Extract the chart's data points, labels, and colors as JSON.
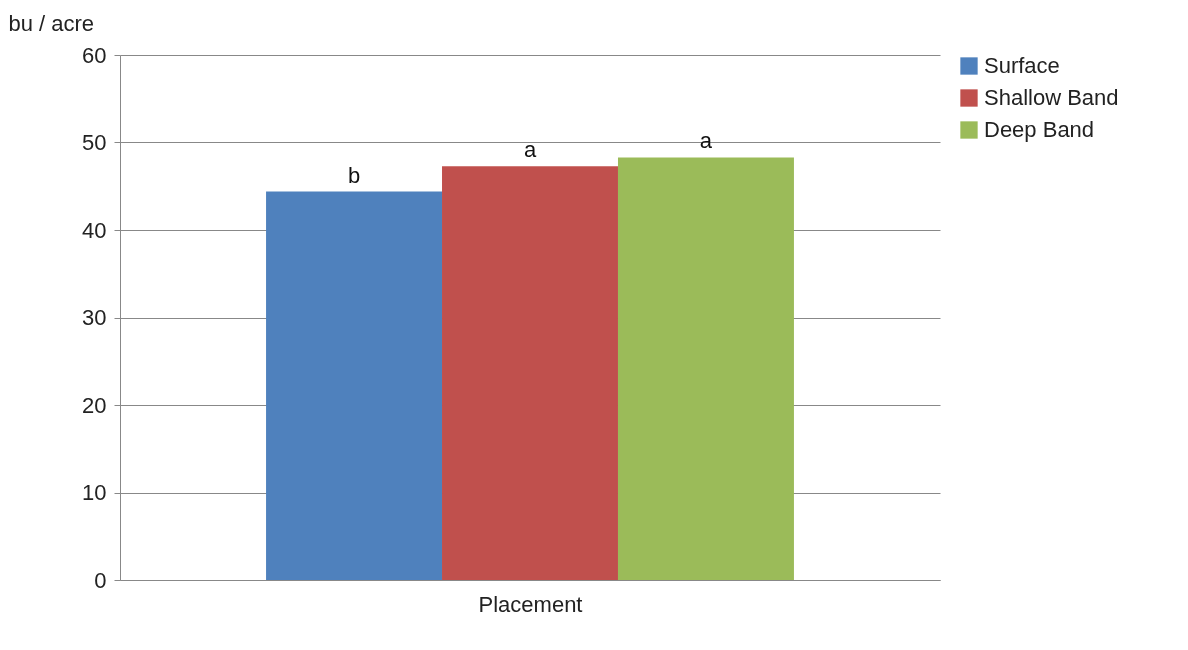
{
  "chart_data": {
    "type": "bar",
    "ylabel": "bu / acre",
    "xlabel": "Placement",
    "categories": [
      null
    ],
    "series": [
      {
        "name": "Surface",
        "color": "#4f81bd",
        "values": [
          44.4
        ]
      },
      {
        "name": "Shallow Band",
        "color": "#c0504d",
        "values": [
          47.3
        ]
      },
      {
        "name": "Deep Band",
        "color": "#9bbb59",
        "values": [
          48.3
        ]
      }
    ],
    "ylim": [
      0,
      60
    ],
    "yticks": [
      0,
      10,
      20,
      30,
      40,
      50,
      60
    ],
    "grid": "y",
    "legend": "right",
    "tick_labels": "y",
    "annotations": [
      {
        "text": "b",
        "y": 44.4
      },
      {
        "text": "a",
        "y": 47.3
      },
      {
        "text": "a",
        "y": 48.3
      }
    ]
  }
}
